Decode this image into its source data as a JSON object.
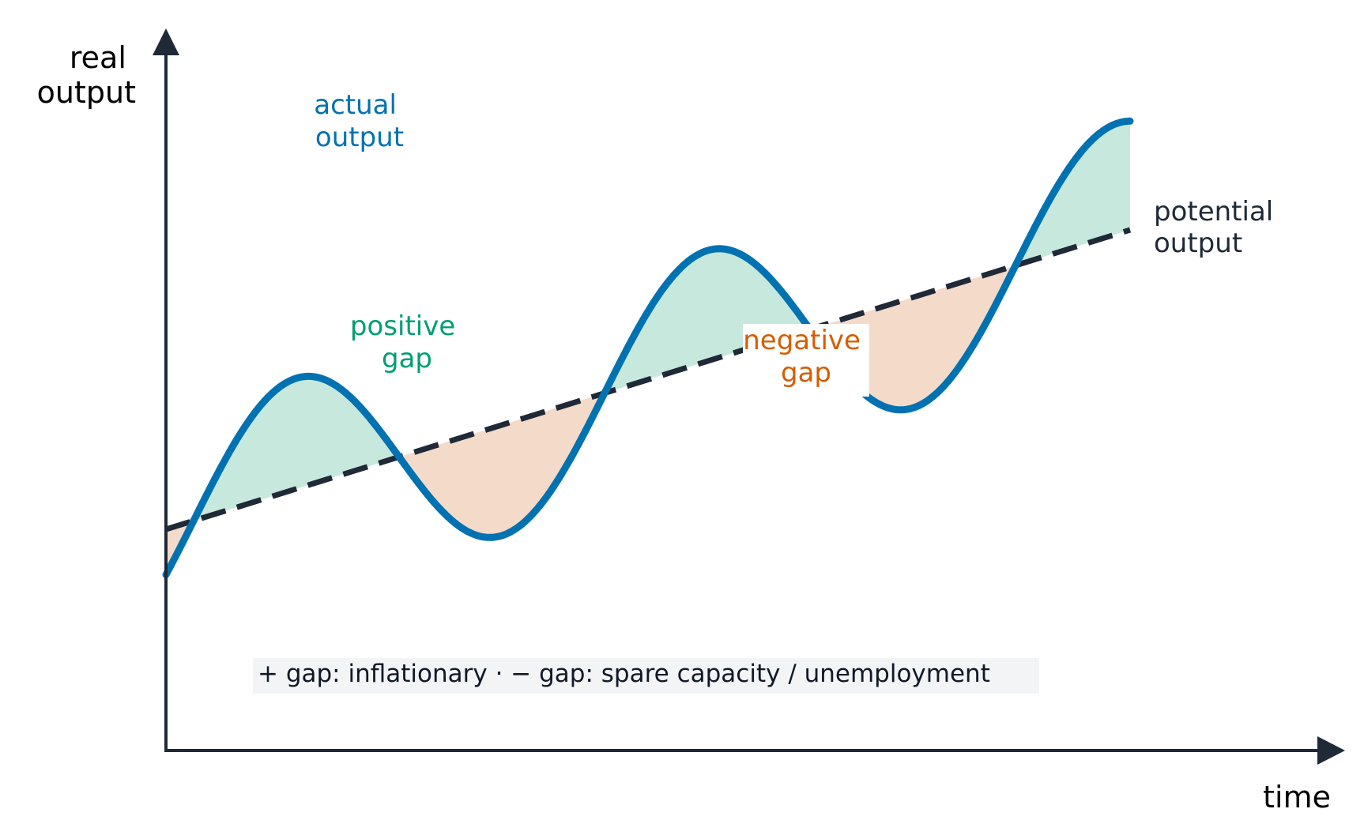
{
  "diagram": {
    "y_axis_label_line1": "real",
    "y_axis_label_line2": "output",
    "x_axis_label": "time",
    "actual_label_line1": "actual",
    "actual_label_line2": "output",
    "potential_label_line1": "potential",
    "potential_label_line2": "output",
    "positive_label_line1": "positive",
    "positive_label_line2": "gap",
    "negative_label_line1": "negative",
    "negative_label_line2": "gap",
    "note": "+ gap: inflationary  ·  − gap: spare capacity / unemployment"
  },
  "colors": {
    "actual_line": "#0072b2",
    "potential_line": "#1f2937",
    "positive_fill": "#c7e8dd",
    "negative_fill": "#f4dac8",
    "positive_text": "#009e73",
    "negative_text": "#d55e00",
    "axis": "#1f2937",
    "note_bg": "#f3f4f6"
  }
}
